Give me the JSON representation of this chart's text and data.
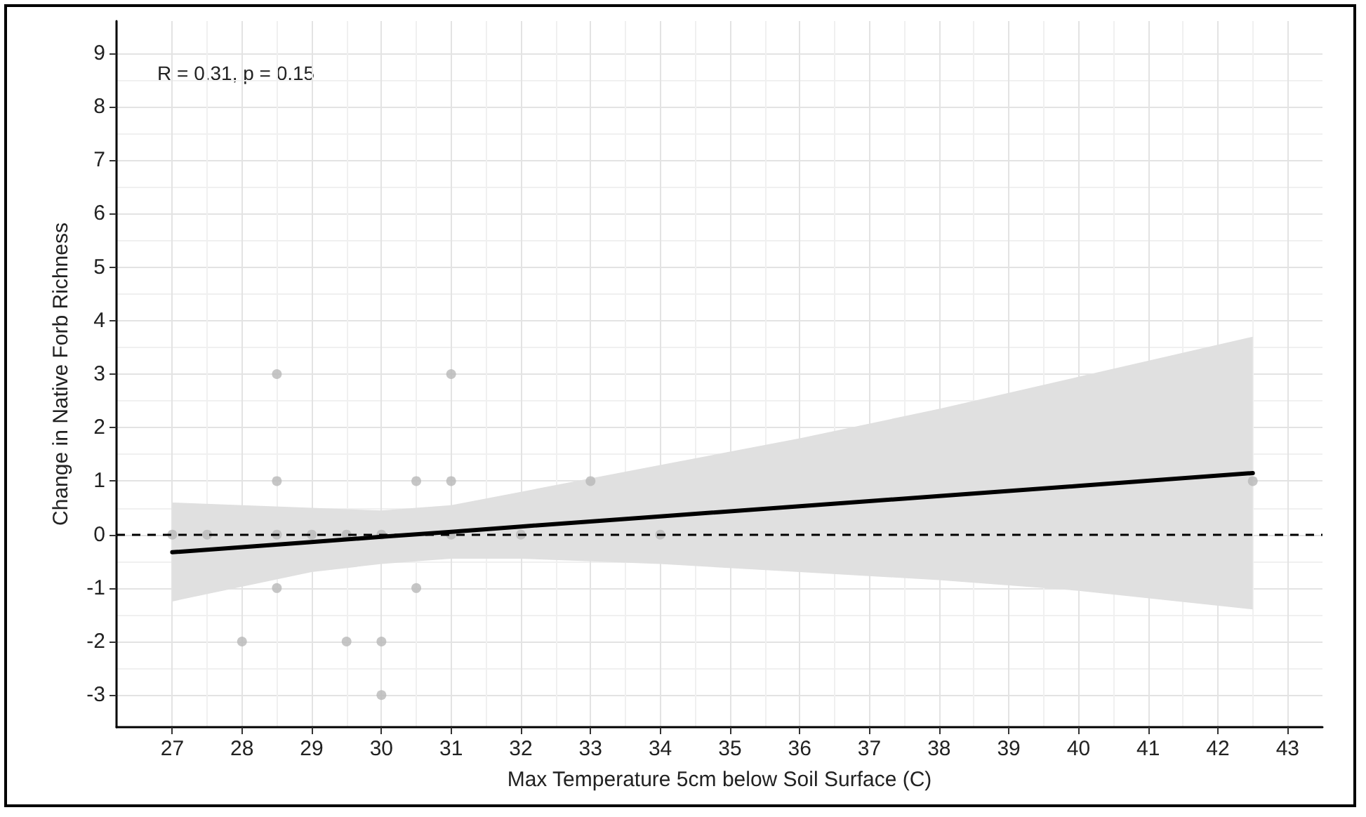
{
  "chart_data": {
    "type": "scatter",
    "xlabel": "Max Temperature 5cm below Soil Surface (C)",
    "ylabel": "Change in Native Forb Richness",
    "annotations": [
      "R = 0.31, p = 0.15"
    ],
    "xlim": [
      26.2,
      43.5
    ],
    "xticks": [
      27,
      28,
      29,
      30,
      31,
      32,
      33,
      34,
      35,
      36,
      37,
      38,
      39,
      40,
      41,
      42,
      43
    ],
    "ylim": [
      -3.6,
      9.6
    ],
    "yticks": [
      -3,
      -2,
      -1,
      0,
      1,
      2,
      3,
      4,
      5,
      6,
      7,
      8,
      9
    ],
    "grid": true,
    "series": [
      {
        "marker": "circle",
        "color": "#b8b8b8",
        "x": [
          27,
          27.5,
          28.5,
          29,
          29.5,
          30,
          31,
          32,
          34,
          28.5,
          31,
          28.5,
          30.5,
          31,
          33,
          42.5,
          28.5,
          30.5,
          28,
          29.5,
          30,
          30
        ],
        "values": [
          0,
          0,
          0,
          0,
          0,
          0,
          0,
          0,
          0,
          3,
          3,
          1,
          1,
          1,
          1,
          1,
          -1,
          -1,
          -2,
          -2,
          -2,
          -3
        ]
      },
      {
        "type": "line",
        "color": "#000000",
        "line_style": "solid",
        "x": [
          27,
          29,
          30,
          31,
          32,
          34,
          36,
          38,
          40,
          42.5
        ],
        "values": [
          -0.33,
          -0.14,
          -0.04,
          0.05,
          0.15,
          0.34,
          0.53,
          0.72,
          0.91,
          1.15
        ],
        "lower": [
          -1.25,
          -0.7,
          -0.55,
          -0.45,
          -0.45,
          -0.55,
          -0.7,
          -0.85,
          -1.05,
          -1.4
        ],
        "upper": [
          0.6,
          0.5,
          0.45,
          0.55,
          0.8,
          1.3,
          1.8,
          2.35,
          2.95,
          3.7
        ]
      }
    ],
    "ref_lines": [
      {
        "axis": "y",
        "value": 0,
        "line_style": "dashed",
        "color": "#000000"
      }
    ]
  }
}
